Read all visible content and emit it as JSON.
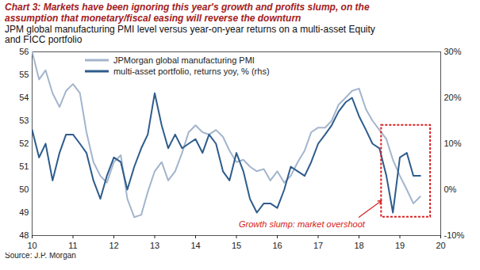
{
  "chart_data": {
    "type": "line",
    "title": "Chart 3: Markets have been ignoring this year's growth and profits slump, on the assumption that monetary/fiscal easing will reverse the downturn",
    "subtitle": "JPM global manufacturing PMI level versus year-on-year returns on a multi-asset Equity and FICC portfolio",
    "source": "Source: J.P. Morgan",
    "annotations": [
      "Growth slump: market overshoot"
    ],
    "x": [
      10,
      10.17,
      10.33,
      10.5,
      10.67,
      10.83,
      11,
      11.17,
      11.33,
      11.5,
      11.67,
      11.83,
      12,
      12.17,
      12.33,
      12.5,
      12.67,
      12.83,
      13,
      13.17,
      13.33,
      13.5,
      13.67,
      13.83,
      14,
      14.17,
      14.33,
      14.5,
      14.67,
      14.83,
      15,
      15.17,
      15.33,
      15.5,
      15.67,
      15.83,
      16,
      16.17,
      16.33,
      16.5,
      16.67,
      16.83,
      17,
      17.17,
      17.33,
      17.5,
      17.67,
      17.83,
      18,
      18.17,
      18.33,
      18.5,
      18.67,
      18.83,
      19,
      19.17,
      19.33,
      19.5
    ],
    "series": [
      {
        "name": "JPMorgan global manufacturing PMI",
        "color": "#a3b5cd",
        "values": [
          56,
          54.8,
          55.2,
          54.2,
          53.6,
          54.3,
          54.6,
          54.2,
          52.5,
          51.2,
          50.6,
          50.3,
          51.2,
          51.5,
          49.6,
          48.8,
          48.9,
          49.9,
          50.8,
          51.2,
          50.4,
          50.8,
          51.6,
          52.5,
          52.8,
          52.5,
          52.4,
          52.6,
          52.3,
          51.7,
          51.2,
          51.3,
          51.0,
          50.8,
          50.9,
          50.4,
          50.8,
          50.3,
          50.6,
          51.2,
          51.7,
          52.5,
          52.7,
          52.7,
          53.0,
          53.7,
          54.0,
          54.3,
          54.4,
          53.5,
          53.0,
          52.6,
          52.2,
          51.3,
          50.6,
          50.0,
          49.4,
          49.7
        ]
      },
      {
        "name": "multi-asset portfolio, returns yoy, % (rhs)",
        "color": "#2e5c8c",
        "axis": "y2",
        "values": [
          13,
          7,
          10,
          2,
          8,
          12,
          12,
          10,
          8,
          2,
          -2,
          3,
          7,
          6,
          0,
          5,
          9,
          12,
          21,
          14,
          9,
          12,
          9,
          10,
          11,
          8,
          12,
          10,
          4,
          2,
          8,
          4,
          -2,
          -5,
          -3,
          -3,
          -4,
          0,
          5,
          4,
          3,
          6,
          10,
          12,
          14,
          17,
          19,
          20,
          16,
          13,
          10,
          9,
          3,
          -5,
          7,
          8,
          3,
          3
        ]
      }
    ],
    "xlim": [
      10,
      20
    ],
    "xticks": [
      10,
      11,
      12,
      13,
      14,
      15,
      16,
      17,
      18,
      19,
      20
    ],
    "ylim": [
      48,
      56
    ],
    "yticks": [
      48,
      49,
      50,
      51,
      52,
      53,
      54,
      55,
      56
    ],
    "y2lim": [
      -10,
      30
    ],
    "y2ticks": [
      {
        "value": -10,
        "label": "-10%"
      },
      {
        "value": 0,
        "label": "0%"
      },
      {
        "value": 10,
        "label": "10%"
      },
      {
        "value": 20,
        "label": "20%"
      },
      {
        "value": 30,
        "label": "30%"
      }
    ],
    "grid": false,
    "legend": "top-left"
  }
}
